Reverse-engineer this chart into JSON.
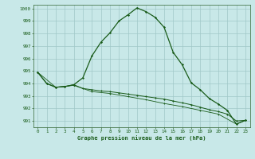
{
  "title": "Graphe pression niveau de la mer (hPa)",
  "xlim": [
    -0.5,
    23.5
  ],
  "ylim": [
    990.5,
    1000.3
  ],
  "xticks": [
    0,
    1,
    2,
    3,
    4,
    5,
    6,
    7,
    8,
    9,
    10,
    11,
    12,
    13,
    14,
    15,
    16,
    17,
    18,
    19,
    20,
    21,
    22,
    23
  ],
  "yticks": [
    991,
    992,
    993,
    994,
    995,
    996,
    997,
    998,
    999,
    1000
  ],
  "background_color": "#c8e8e8",
  "grid_color": "#a0c8c8",
  "line_color": "#1a5c1a",
  "series1": [
    [
      0,
      994.9
    ],
    [
      1,
      994.0
    ],
    [
      2,
      993.7
    ],
    [
      3,
      993.75
    ],
    [
      4,
      993.9
    ],
    [
      5,
      994.45
    ],
    [
      6,
      996.2
    ],
    [
      7,
      997.3
    ],
    [
      8,
      998.05
    ],
    [
      9,
      999.0
    ],
    [
      10,
      999.5
    ],
    [
      11,
      1000.05
    ],
    [
      12,
      999.75
    ],
    [
      13,
      999.3
    ],
    [
      14,
      998.5
    ],
    [
      15,
      996.5
    ],
    [
      16,
      995.5
    ],
    [
      17,
      994.05
    ],
    [
      18,
      993.5
    ],
    [
      19,
      992.8
    ],
    [
      20,
      992.35
    ],
    [
      21,
      991.85
    ],
    [
      22,
      990.75
    ],
    [
      23,
      991.05
    ]
  ],
  "series2": [
    [
      0,
      994.9
    ],
    [
      1,
      994.0
    ],
    [
      2,
      993.7
    ],
    [
      3,
      993.75
    ],
    [
      4,
      993.9
    ],
    [
      5,
      993.6
    ],
    [
      6,
      993.5
    ],
    [
      7,
      993.4
    ],
    [
      8,
      993.35
    ],
    [
      9,
      993.25
    ],
    [
      10,
      993.15
    ],
    [
      11,
      993.05
    ],
    [
      12,
      992.95
    ],
    [
      13,
      992.85
    ],
    [
      14,
      992.75
    ],
    [
      15,
      992.6
    ],
    [
      16,
      992.45
    ],
    [
      17,
      992.3
    ],
    [
      18,
      992.1
    ],
    [
      19,
      991.9
    ],
    [
      20,
      991.75
    ],
    [
      21,
      991.55
    ],
    [
      22,
      991.0
    ],
    [
      23,
      991.05
    ]
  ],
  "series3": [
    [
      0,
      994.9
    ],
    [
      2,
      993.7
    ],
    [
      4,
      993.85
    ],
    [
      6,
      993.35
    ],
    [
      8,
      993.2
    ],
    [
      10,
      992.95
    ],
    [
      12,
      992.7
    ],
    [
      14,
      992.4
    ],
    [
      16,
      992.15
    ],
    [
      18,
      991.85
    ],
    [
      20,
      991.55
    ],
    [
      22,
      990.75
    ],
    [
      23,
      991.05
    ]
  ]
}
